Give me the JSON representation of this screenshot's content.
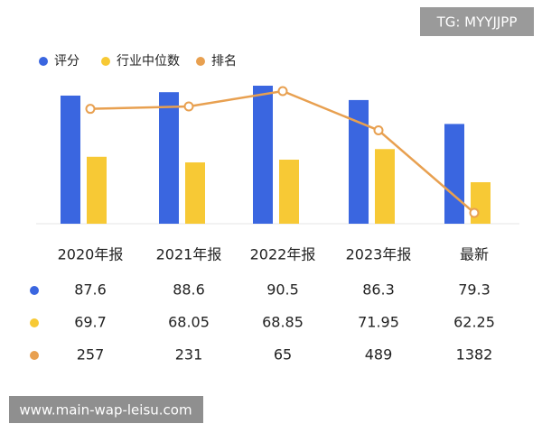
{
  "chart_data": {
    "type": "bar",
    "categories": [
      "2020年报",
      "2021年报",
      "2022年报",
      "2023年报",
      "最新"
    ],
    "series": [
      {
        "name": "评分",
        "color": "#3a66e0",
        "values": [
          87.6,
          88.6,
          90.5,
          86.3,
          79.3
        ]
      },
      {
        "name": "行业中位数",
        "color": "#f7c935",
        "values": [
          69.7,
          68.05,
          68.85,
          71.95,
          62.25
        ]
      },
      {
        "name": "排名",
        "color": "#e8a050",
        "type": "line",
        "values": [
          257,
          231,
          65,
          489,
          1382
        ]
      }
    ]
  },
  "watermarks": [
    "TG: MYYJJPP",
    "www.main-wap-leisu.com"
  ]
}
